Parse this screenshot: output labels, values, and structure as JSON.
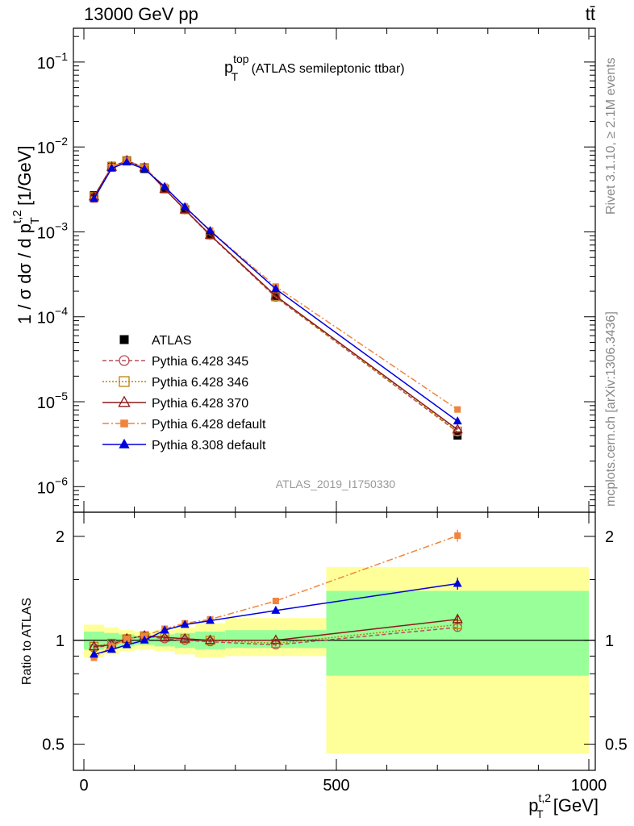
{
  "header": {
    "left": "13000 GeV pp",
    "right": "tt̄"
  },
  "side": {
    "rivet": "Rivet 3.1.10, ≥ 2.1M events",
    "mcplots": "mcplots.cern.ch [arXiv:1306.3436]"
  },
  "chart_data": {
    "type": "line",
    "title_main": "p",
    "title_sup": "top",
    "title_sub": "T",
    "title_rest": " (ATLAS semileptonic ttbar)",
    "analysis_id": "ATLAS_2019_I1750330",
    "x_axis": {
      "label_main": "p",
      "label_sup": "t,2",
      "label_sub": "T",
      "label_unit": " [GeV]",
      "range": [
        0,
        1000
      ],
      "ticks": [
        0,
        500,
        1000
      ],
      "tick_labels": [
        "0",
        "500",
        "1000"
      ]
    },
    "y_axis_top": {
      "label_part1": "1 / σ dσ / d p",
      "label_sup": "t,2",
      "label_sub": "T",
      "label_unit": " [1/GeV]",
      "scale": "log",
      "range": [
        5e-07,
        0.25
      ],
      "ticks": [
        1e-06,
        1e-05,
        0.0001,
        0.001,
        0.01,
        0.1
      ],
      "tick_base": "10",
      "tick_exps": [
        "−6",
        "−5",
        "−4",
        "−3",
        "−2",
        "−1"
      ]
    },
    "y_axis_bottom": {
      "label": "Ratio to ATLAS",
      "scale": "log",
      "range": [
        0.42,
        2.35
      ],
      "ticks": [
        0.5,
        1,
        2
      ],
      "tick_labels": [
        "0.5",
        "1",
        "2"
      ]
    },
    "x": [
      20,
      55,
      85,
      120,
      160,
      200,
      250,
      380,
      740
    ],
    "bins": [
      [
        0,
        40
      ],
      [
        40,
        70
      ],
      [
        70,
        100
      ],
      [
        100,
        140
      ],
      [
        140,
        180
      ],
      [
        180,
        220
      ],
      [
        220,
        280
      ],
      [
        280,
        480
      ],
      [
        480,
        1000
      ]
    ],
    "band_inner": [
      [
        0.94,
        1.06
      ],
      [
        0.95,
        1.05
      ],
      [
        0.96,
        1.04
      ],
      [
        0.97,
        1.03
      ],
      [
        0.96,
        1.04
      ],
      [
        0.95,
        1.05
      ],
      [
        0.94,
        1.06
      ],
      [
        0.95,
        1.07
      ],
      [
        0.79,
        1.39
      ]
    ],
    "band_outer": [
      [
        0.89,
        1.11
      ],
      [
        0.91,
        1.09
      ],
      [
        0.93,
        1.07
      ],
      [
        0.94,
        1.06
      ],
      [
        0.93,
        1.07
      ],
      [
        0.91,
        1.09
      ],
      [
        0.89,
        1.12
      ],
      [
        0.9,
        1.16
      ],
      [
        0.47,
        1.63
      ]
    ],
    "legend_position": "lower-left",
    "series": [
      {
        "name": "ATLAS",
        "style": "data",
        "color": "#000000",
        "values": [
          0.0027,
          0.006,
          0.0068,
          0.0055,
          0.0032,
          0.00182,
          0.00092,
          0.000175,
          4e-06
        ]
      },
      {
        "name": "Pythia 6.428 345",
        "style": "open-circle-dashed",
        "color": "#b5505a",
        "values": [
          0.0026,
          0.0058,
          0.0069,
          0.0057,
          0.0032,
          0.00182,
          0.00091,
          0.00017,
          4.4e-06
        ]
      },
      {
        "name": "Pythia 6.428 346",
        "style": "open-square-dotted",
        "color": "#b8860b",
        "values": [
          0.0026,
          0.0059,
          0.0069,
          0.0057,
          0.0032,
          0.00183,
          0.00092,
          0.000172,
          4.5e-06
        ]
      },
      {
        "name": "Pythia 6.428 370",
        "style": "open-triangle-solid",
        "color": "#8b1a1a",
        "values": [
          0.0026,
          0.0058,
          0.0069,
          0.0057,
          0.0032,
          0.00183,
          0.00092,
          0.000176,
          4.7e-06
        ]
      },
      {
        "name": "Pythia 6.428 default",
        "style": "filled-square-dashdot",
        "color": "#f0843c",
        "values": [
          0.0024,
          0.0058,
          0.0069,
          0.0057,
          0.0034,
          0.00199,
          0.00104,
          0.000227,
          8.1e-06
        ]
      },
      {
        "name": "Pythia 8.308 default",
        "style": "filled-triangle-solid",
        "color": "#0000dd",
        "values": [
          0.00245,
          0.0056,
          0.0066,
          0.0055,
          0.0034,
          0.00197,
          0.00103,
          0.000213,
          5.9e-06
        ]
      }
    ],
    "ratios": [
      [
        0.95,
        0.97,
        1.01,
        1.03,
        1.01,
        1.0,
        0.99,
        0.97,
        1.09
      ],
      [
        0.96,
        0.98,
        1.01,
        1.03,
        1.02,
        1.01,
        1.0,
        0.98,
        1.11
      ],
      [
        0.96,
        0.97,
        1.01,
        1.03,
        1.02,
        1.01,
        1.0,
        1.0,
        1.15
      ],
      [
        0.89,
        0.96,
        1.01,
        1.03,
        1.08,
        1.12,
        1.15,
        1.3,
        2.01
      ],
      [
        0.91,
        0.94,
        0.97,
        1.0,
        1.07,
        1.11,
        1.14,
        1.22,
        1.46
      ]
    ],
    "ratio_errors": [
      [
        0.01,
        0.01,
        0.01,
        0.01,
        0.01,
        0.01,
        0.01,
        0.01,
        0.03
      ],
      [
        0.01,
        0.01,
        0.01,
        0.01,
        0.01,
        0.01,
        0.01,
        0.01,
        0.03
      ],
      [
        0.01,
        0.01,
        0.01,
        0.01,
        0.01,
        0.01,
        0.01,
        0.01,
        0.03
      ],
      [
        0.01,
        0.01,
        0.01,
        0.01,
        0.01,
        0.01,
        0.01,
        0.01,
        0.04
      ],
      [
        0.01,
        0.01,
        0.01,
        0.01,
        0.01,
        0.01,
        0.01,
        0.01,
        0.04
      ]
    ],
    "colors": {
      "band_outer": "#ffff99",
      "band_inner": "#99ff99",
      "axis": "#000000",
      "side_text": "#888888"
    }
  }
}
